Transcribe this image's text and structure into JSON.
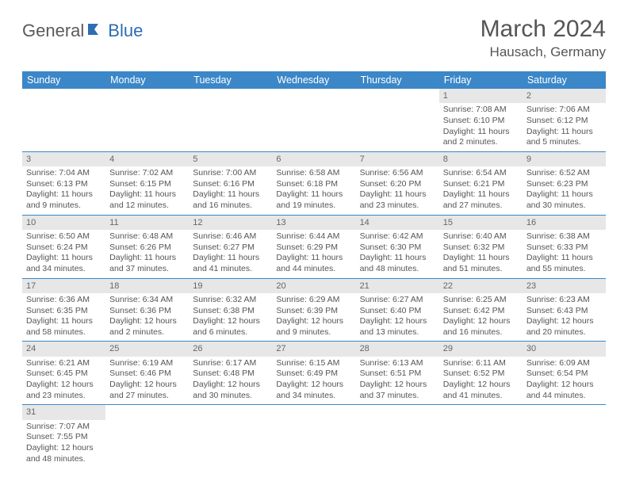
{
  "logo": {
    "part1": "General",
    "part2": "Blue"
  },
  "title": "March 2024",
  "location": "Hausach, Germany",
  "headers": [
    "Sunday",
    "Monday",
    "Tuesday",
    "Wednesday",
    "Thursday",
    "Friday",
    "Saturday"
  ],
  "colors": {
    "header_bg": "#3b87c8",
    "header_fg": "#ffffff",
    "daynum_bg": "#e7e7e7",
    "text": "#555555",
    "border": "#3b87c8"
  },
  "weeks": [
    [
      null,
      null,
      null,
      null,
      null,
      {
        "n": "1",
        "sunrise": "Sunrise: 7:08 AM",
        "sunset": "Sunset: 6:10 PM",
        "day1": "Daylight: 11 hours",
        "day2": "and 2 minutes."
      },
      {
        "n": "2",
        "sunrise": "Sunrise: 7:06 AM",
        "sunset": "Sunset: 6:12 PM",
        "day1": "Daylight: 11 hours",
        "day2": "and 5 minutes."
      }
    ],
    [
      {
        "n": "3",
        "sunrise": "Sunrise: 7:04 AM",
        "sunset": "Sunset: 6:13 PM",
        "day1": "Daylight: 11 hours",
        "day2": "and 9 minutes."
      },
      {
        "n": "4",
        "sunrise": "Sunrise: 7:02 AM",
        "sunset": "Sunset: 6:15 PM",
        "day1": "Daylight: 11 hours",
        "day2": "and 12 minutes."
      },
      {
        "n": "5",
        "sunrise": "Sunrise: 7:00 AM",
        "sunset": "Sunset: 6:16 PM",
        "day1": "Daylight: 11 hours",
        "day2": "and 16 minutes."
      },
      {
        "n": "6",
        "sunrise": "Sunrise: 6:58 AM",
        "sunset": "Sunset: 6:18 PM",
        "day1": "Daylight: 11 hours",
        "day2": "and 19 minutes."
      },
      {
        "n": "7",
        "sunrise": "Sunrise: 6:56 AM",
        "sunset": "Sunset: 6:20 PM",
        "day1": "Daylight: 11 hours",
        "day2": "and 23 minutes."
      },
      {
        "n": "8",
        "sunrise": "Sunrise: 6:54 AM",
        "sunset": "Sunset: 6:21 PM",
        "day1": "Daylight: 11 hours",
        "day2": "and 27 minutes."
      },
      {
        "n": "9",
        "sunrise": "Sunrise: 6:52 AM",
        "sunset": "Sunset: 6:23 PM",
        "day1": "Daylight: 11 hours",
        "day2": "and 30 minutes."
      }
    ],
    [
      {
        "n": "10",
        "sunrise": "Sunrise: 6:50 AM",
        "sunset": "Sunset: 6:24 PM",
        "day1": "Daylight: 11 hours",
        "day2": "and 34 minutes."
      },
      {
        "n": "11",
        "sunrise": "Sunrise: 6:48 AM",
        "sunset": "Sunset: 6:26 PM",
        "day1": "Daylight: 11 hours",
        "day2": "and 37 minutes."
      },
      {
        "n": "12",
        "sunrise": "Sunrise: 6:46 AM",
        "sunset": "Sunset: 6:27 PM",
        "day1": "Daylight: 11 hours",
        "day2": "and 41 minutes."
      },
      {
        "n": "13",
        "sunrise": "Sunrise: 6:44 AM",
        "sunset": "Sunset: 6:29 PM",
        "day1": "Daylight: 11 hours",
        "day2": "and 44 minutes."
      },
      {
        "n": "14",
        "sunrise": "Sunrise: 6:42 AM",
        "sunset": "Sunset: 6:30 PM",
        "day1": "Daylight: 11 hours",
        "day2": "and 48 minutes."
      },
      {
        "n": "15",
        "sunrise": "Sunrise: 6:40 AM",
        "sunset": "Sunset: 6:32 PM",
        "day1": "Daylight: 11 hours",
        "day2": "and 51 minutes."
      },
      {
        "n": "16",
        "sunrise": "Sunrise: 6:38 AM",
        "sunset": "Sunset: 6:33 PM",
        "day1": "Daylight: 11 hours",
        "day2": "and 55 minutes."
      }
    ],
    [
      {
        "n": "17",
        "sunrise": "Sunrise: 6:36 AM",
        "sunset": "Sunset: 6:35 PM",
        "day1": "Daylight: 11 hours",
        "day2": "and 58 minutes."
      },
      {
        "n": "18",
        "sunrise": "Sunrise: 6:34 AM",
        "sunset": "Sunset: 6:36 PM",
        "day1": "Daylight: 12 hours",
        "day2": "and 2 minutes."
      },
      {
        "n": "19",
        "sunrise": "Sunrise: 6:32 AM",
        "sunset": "Sunset: 6:38 PM",
        "day1": "Daylight: 12 hours",
        "day2": "and 6 minutes."
      },
      {
        "n": "20",
        "sunrise": "Sunrise: 6:29 AM",
        "sunset": "Sunset: 6:39 PM",
        "day1": "Daylight: 12 hours",
        "day2": "and 9 minutes."
      },
      {
        "n": "21",
        "sunrise": "Sunrise: 6:27 AM",
        "sunset": "Sunset: 6:40 PM",
        "day1": "Daylight: 12 hours",
        "day2": "and 13 minutes."
      },
      {
        "n": "22",
        "sunrise": "Sunrise: 6:25 AM",
        "sunset": "Sunset: 6:42 PM",
        "day1": "Daylight: 12 hours",
        "day2": "and 16 minutes."
      },
      {
        "n": "23",
        "sunrise": "Sunrise: 6:23 AM",
        "sunset": "Sunset: 6:43 PM",
        "day1": "Daylight: 12 hours",
        "day2": "and 20 minutes."
      }
    ],
    [
      {
        "n": "24",
        "sunrise": "Sunrise: 6:21 AM",
        "sunset": "Sunset: 6:45 PM",
        "day1": "Daylight: 12 hours",
        "day2": "and 23 minutes."
      },
      {
        "n": "25",
        "sunrise": "Sunrise: 6:19 AM",
        "sunset": "Sunset: 6:46 PM",
        "day1": "Daylight: 12 hours",
        "day2": "and 27 minutes."
      },
      {
        "n": "26",
        "sunrise": "Sunrise: 6:17 AM",
        "sunset": "Sunset: 6:48 PM",
        "day1": "Daylight: 12 hours",
        "day2": "and 30 minutes."
      },
      {
        "n": "27",
        "sunrise": "Sunrise: 6:15 AM",
        "sunset": "Sunset: 6:49 PM",
        "day1": "Daylight: 12 hours",
        "day2": "and 34 minutes."
      },
      {
        "n": "28",
        "sunrise": "Sunrise: 6:13 AM",
        "sunset": "Sunset: 6:51 PM",
        "day1": "Daylight: 12 hours",
        "day2": "and 37 minutes."
      },
      {
        "n": "29",
        "sunrise": "Sunrise: 6:11 AM",
        "sunset": "Sunset: 6:52 PM",
        "day1": "Daylight: 12 hours",
        "day2": "and 41 minutes."
      },
      {
        "n": "30",
        "sunrise": "Sunrise: 6:09 AM",
        "sunset": "Sunset: 6:54 PM",
        "day1": "Daylight: 12 hours",
        "day2": "and 44 minutes."
      }
    ],
    [
      {
        "n": "31",
        "sunrise": "Sunrise: 7:07 AM",
        "sunset": "Sunset: 7:55 PM",
        "day1": "Daylight: 12 hours",
        "day2": "and 48 minutes."
      },
      null,
      null,
      null,
      null,
      null,
      null
    ]
  ]
}
